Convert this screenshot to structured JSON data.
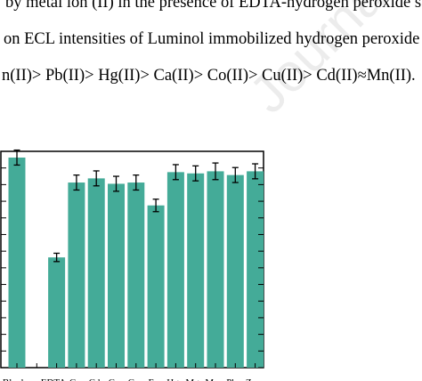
{
  "text": {
    "line1": "by metal ion (II) in the presence of EDTA-hydrogen peroxide s",
    "line2": "on ECL intensities of Luminol immobilized hydrogen peroxide",
    "line3": "n(II)> Pb(II)> Hg(II)> Ca(II)> Co(II)> Cu(II)> Cd(II)≈Mn(II)."
  },
  "watermark": "Journal Pre-proof",
  "colors": {
    "bar": "#44ab98",
    "axis": "#000000"
  },
  "chart_data": {
    "type": "bar",
    "title": "",
    "xlabel": "",
    "ylabel": "",
    "categories": [
      "Blank",
      "",
      "EDTA",
      "Ca",
      "Cd",
      "Co",
      "Cu",
      "Fe",
      "Hg",
      "Mg",
      "Mn",
      "Pb",
      "Zn"
    ],
    "tick_labels": [
      "Blank",
      "EDTA",
      "Ca",
      "Cd",
      "Co",
      "Cu",
      "Fe",
      "Hg",
      "Mg",
      "Mn",
      "Pb",
      "Zn"
    ],
    "values": [
      50.5,
      0,
      26.5,
      44.5,
      45.5,
      44.2,
      44.5,
      39.0,
      47.0,
      46.7,
      47.2,
      46.3,
      47.2
    ],
    "errors": [
      1.8,
      0,
      1.0,
      1.8,
      1.8,
      1.8,
      1.8,
      1.5,
      1.8,
      1.8,
      2.0,
      1.8,
      1.8
    ],
    "ylim": [
      0,
      52
    ]
  }
}
